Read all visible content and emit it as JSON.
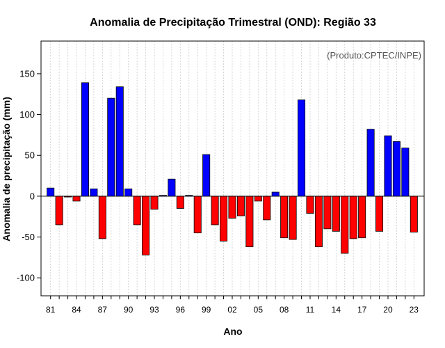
{
  "chart_data": {
    "type": "bar",
    "title": "Anomalia de Precipitação Trimestral (OND): Região 33",
    "xlabel": "Ano",
    "ylabel": "Anomalia de precipitação (mm)",
    "annotation": "(Produto:CPTEC/INPE)",
    "ylim": [
      -122,
      190
    ],
    "yticks": [
      -100,
      -50,
      0,
      50,
      100,
      150
    ],
    "xtick_labels": [
      "81",
      "84",
      "87",
      "90",
      "93",
      "96",
      "99",
      "02",
      "05",
      "08",
      "11",
      "14",
      "17",
      "20",
      "23"
    ],
    "grid": true,
    "colors": {
      "positive": "#0000ff",
      "negative": "#ff0000",
      "baseline": "#000000"
    },
    "categories": [
      "1981",
      "1982",
      "1983",
      "1984",
      "1985",
      "1986",
      "1987",
      "1988",
      "1989",
      "1990",
      "1991",
      "1992",
      "1993",
      "1994",
      "1995",
      "1996",
      "1997",
      "1998",
      "1999",
      "2000",
      "2001",
      "2002",
      "2003",
      "2004",
      "2005",
      "2006",
      "2007",
      "2008",
      "2009",
      "2010",
      "2011",
      "2012",
      "2013",
      "2014",
      "2015",
      "2016",
      "2017",
      "2018",
      "2019",
      "2020",
      "2021",
      "2022",
      "2023"
    ],
    "values": [
      10,
      -35,
      -1,
      -6,
      139,
      9,
      -52,
      120,
      134,
      9,
      -35,
      -72,
      -16,
      1,
      21,
      -15,
      1,
      -45,
      51,
      -35,
      -55,
      -27,
      -24,
      -62,
      -6,
      -29,
      5,
      -51,
      -53,
      118,
      -21,
      -62,
      -40,
      -43,
      -70,
      -52,
      -51,
      82,
      -43,
      74,
      67,
      59,
      -44
    ]
  }
}
